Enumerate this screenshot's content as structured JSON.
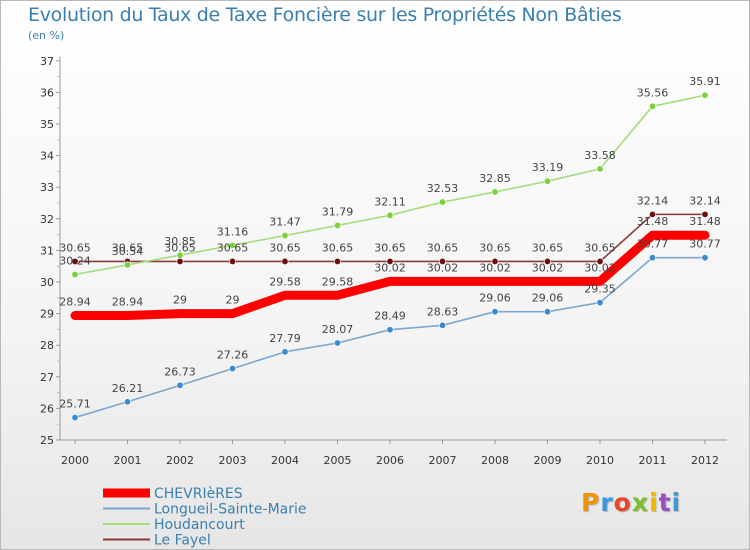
{
  "title": "Evolution du Taux de Taxe Foncière sur les Propriétés Non Bâties",
  "subtitle": "(en %)",
  "logo": "Proxiti",
  "chart_data": {
    "type": "line",
    "title": "Evolution du Taux de Taxe Foncière sur les Propriétés Non Bâties",
    "ylabel": "(en %)",
    "xlabel": "",
    "ylim": [
      25,
      37
    ],
    "yticks": [
      "25",
      "26",
      "27",
      "28",
      "29",
      "30",
      "31",
      "32",
      "33",
      "34",
      "35",
      "36",
      "37"
    ],
    "categories": [
      "2000",
      "2001",
      "2002",
      "2003",
      "2004",
      "2005",
      "2006",
      "2007",
      "2008",
      "2009",
      "2010",
      "2011",
      "2012"
    ],
    "grid": false,
    "legend_position": "bottom-left",
    "series": [
      {
        "name": "CHEVRIèRES",
        "color": "#ff0000",
        "values": [
          28.94,
          28.94,
          29,
          29,
          29.58,
          29.58,
          30.02,
          30.02,
          30.02,
          30.02,
          30.02,
          31.48,
          31.48
        ],
        "labels": [
          "28.94",
          "28.94",
          "29",
          "29",
          "29.58",
          "29.58",
          "30.02",
          "30.02",
          "30.02",
          "30.02",
          "30.02",
          "31.48",
          "31.48"
        ]
      },
      {
        "name": "Longueil-Sainte-Marie",
        "color": "#7ba7d0",
        "values": [
          25.71,
          26.21,
          26.73,
          27.26,
          27.79,
          28.07,
          28.49,
          28.63,
          29.06,
          29.06,
          29.35,
          30.77,
          30.77
        ],
        "labels": [
          "25.71",
          "26.21",
          "26.73",
          "27.26",
          "27.79",
          "28.07",
          "28.49",
          "28.63",
          "29.06",
          "29.06",
          "29.35",
          "30.77",
          "30.77"
        ]
      },
      {
        "name": "Houdancourt",
        "color": "#a6dc7c",
        "values": [
          30.24,
          30.54,
          30.85,
          31.16,
          31.47,
          31.79,
          32.11,
          32.53,
          32.85,
          33.19,
          33.58,
          35.56,
          35.91
        ],
        "labels": [
          "30.24",
          "30.54",
          "30.85",
          "31.16",
          "31.47",
          "31.79",
          "32.11",
          "32.53",
          "32.85",
          "33.19",
          "33.58",
          "35.56",
          "35.91"
        ]
      },
      {
        "name": "Le Fayel",
        "color": "#8a3a3a",
        "values": [
          30.65,
          30.65,
          30.65,
          30.65,
          30.65,
          30.65,
          30.65,
          30.65,
          30.65,
          30.65,
          30.65,
          32.14,
          32.14
        ],
        "labels": [
          "30.65",
          "30.65",
          "30.65",
          "30.65",
          "30.65",
          "30.65",
          "30.65",
          "30.65",
          "30.65",
          "30.65",
          "30.65",
          "32.14",
          "32.14"
        ]
      }
    ]
  }
}
